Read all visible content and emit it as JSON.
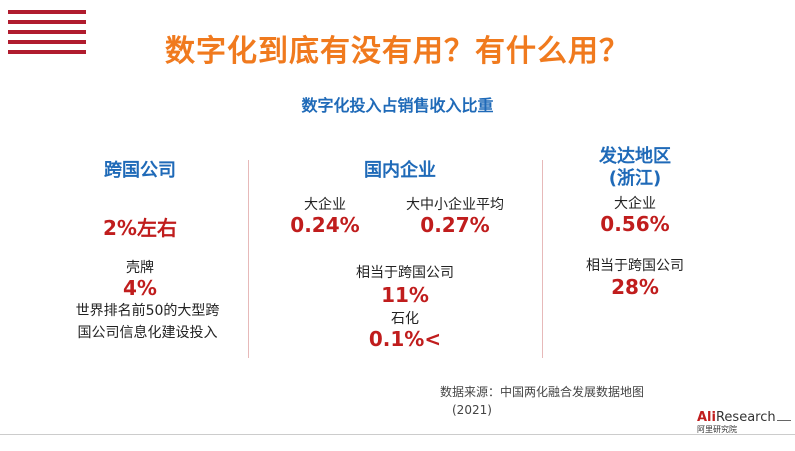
{
  "title": "数字化到底有没有用？有什么用？",
  "subtitle": "数字化投入占销售收入比重",
  "col1": {
    "heading": "跨国公司",
    "value": "2%左右",
    "sub_label": "壳牌",
    "sub_value": "4%",
    "desc_line1": "世界排名前50的大型跨",
    "desc_line2": "国公司信息化建设投入"
  },
  "col2": {
    "heading": "国内企业",
    "large_label": "大企业",
    "large_value": "0.24%",
    "sme_label": "大中小企业平均",
    "sme_value": "0.27%",
    "relative_label": "相当于跨国公司",
    "relative_value": "11%",
    "petro_label": "石化",
    "petro_value": "0.1%<"
  },
  "col3": {
    "heading_line1": "发达地区",
    "heading_line2": "(浙江)",
    "large_label": "大企业",
    "large_value": "0.56%",
    "relative_label": "相当于跨国公司",
    "relative_value": "28%"
  },
  "source_line1": "数据来源：中国两化融合发展数据地图",
  "source_line2": "(2021)",
  "logo": {
    "ali": "Ali",
    "research": "Research",
    "sub": "阿里研究院"
  },
  "colors": {
    "title": "#f07a1e",
    "heading": "#1f6ab8",
    "value": "#c01d1d",
    "stripe": "#b01c2e"
  }
}
